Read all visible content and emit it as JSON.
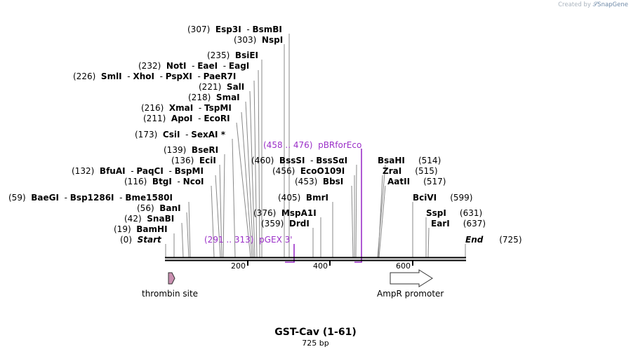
{
  "credit": {
    "prefix": "Created by",
    "brand": "SnapGene"
  },
  "plasmid": {
    "name": "GST-Cav (1-61)",
    "size": "725 bp"
  },
  "start": {
    "pos": "(0)",
    "name": "Start"
  },
  "end": {
    "name": "End",
    "pos": "(725)"
  },
  "ticks": [
    "200",
    "400",
    "600"
  ],
  "features": [
    {
      "name": "thrombin site",
      "color": "#c98fb0"
    },
    {
      "name": "AmpR promoter",
      "color": "#ffffff"
    }
  ],
  "primers": [
    {
      "range": "(291 .. 313)",
      "name": "pGEX 3'"
    },
    {
      "range": "(458 .. 476)",
      "name": "pBRforEco"
    }
  ],
  "sites": [
    {
      "pos": "(307)",
      "names": [
        "Esp3I",
        "BsmBI"
      ]
    },
    {
      "pos": "(303)",
      "names": [
        "NspI"
      ]
    },
    {
      "pos": "(235)",
      "names": [
        "BsiEI"
      ]
    },
    {
      "pos": "(232)",
      "names": [
        "NotI",
        "EaeI",
        "EagI"
      ]
    },
    {
      "pos": "(226)",
      "names": [
        "SmlI",
        "XhoI",
        "PspXI",
        "PaeR7I"
      ]
    },
    {
      "pos": "(221)",
      "names": [
        "SalI"
      ]
    },
    {
      "pos": "(218)",
      "names": [
        "SmaI"
      ]
    },
    {
      "pos": "(216)",
      "names": [
        "XmaI",
        "TspMI"
      ]
    },
    {
      "pos": "(211)",
      "names": [
        "ApoI",
        "EcoRI"
      ]
    },
    {
      "pos": "(173)",
      "names": [
        "CsiI",
        "SexAI *"
      ]
    },
    {
      "pos": "(139)",
      "names": [
        "BseRI"
      ]
    },
    {
      "pos": "(136)",
      "names": [
        "EciI"
      ]
    },
    {
      "pos": "(132)",
      "names": [
        "BfuAI",
        "PaqCI",
        "BspMI"
      ]
    },
    {
      "pos": "(116)",
      "names": [
        "BtgI",
        "NcoI"
      ]
    },
    {
      "pos": "(59)",
      "names": [
        "BaeGI",
        "Bsp1286I",
        "Bme1580I"
      ]
    },
    {
      "pos": "(56)",
      "names": [
        "BanI"
      ]
    },
    {
      "pos": "(42)",
      "names": [
        "SnaBI"
      ]
    },
    {
      "pos": "(19)",
      "names": [
        "BamHI"
      ]
    },
    {
      "pos": "(460)",
      "names": [
        "BssSI",
        "BssSαI"
      ]
    },
    {
      "pos": "(456)",
      "names": [
        "EcoO109I"
      ]
    },
    {
      "pos": "(453)",
      "names": [
        "BbsI"
      ]
    },
    {
      "pos": "(405)",
      "names": [
        "BmrI"
      ]
    },
    {
      "pos": "(376)",
      "names": [
        "MspA1I"
      ]
    },
    {
      "pos": "(359)",
      "names": [
        "DrdI"
      ]
    },
    {
      "pos": "(514)",
      "names": [
        "BsaHI"
      ]
    },
    {
      "pos": "(515)",
      "names": [
        "ZraI"
      ]
    },
    {
      "pos": "(517)",
      "names": [
        "AatII"
      ]
    },
    {
      "pos": "(599)",
      "names": [
        "BciVI"
      ]
    },
    {
      "pos": "(631)",
      "names": [
        "SspI"
      ]
    },
    {
      "pos": "(637)",
      "names": [
        "EarI"
      ]
    }
  ]
}
